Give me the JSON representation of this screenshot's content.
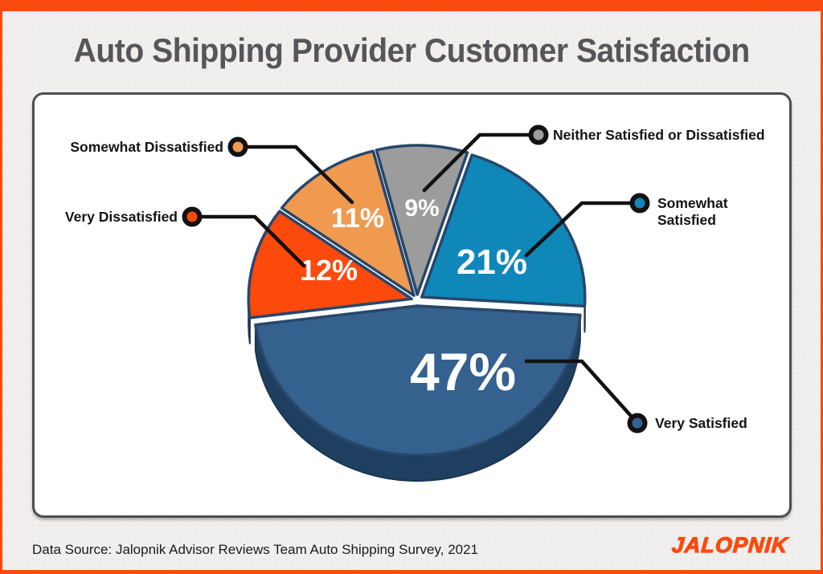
{
  "header": {
    "title": "Auto Shipping Provider Customer Satisfaction"
  },
  "footer": {
    "source": "Data Source: Jalopnik Advisor Reviews Team Auto Shipping Survey, 2021",
    "brand": "JALOPNIK"
  },
  "colors": {
    "accent": "#FA4A10",
    "background": "#F0EFED",
    "card_border": "#4E4E50",
    "title_text": "#56565A",
    "callout_line": "#121212",
    "slice_stroke": "#27476B",
    "percent_text": "#FFFFFF"
  },
  "chart_data": {
    "type": "pie",
    "title": "Auto Shipping Provider Customer Satisfaction",
    "style": "3d-exploded",
    "direction": "clockwise",
    "start_angle_deg": 104.5,
    "legend_position": "callouts",
    "total": 100,
    "slices": [
      {
        "label": "Neither Satisfied or Dissatisfied",
        "value": 9,
        "display": "9%",
        "color": "#9C9C9C",
        "side_color": "#6F6F6F"
      },
      {
        "label": "Somewhat Satisfied",
        "value": 21,
        "display": "21%",
        "color": "#0F87B9",
        "side_color": "#0A5E81"
      },
      {
        "label": "Very Satisfied",
        "value": 47,
        "display": "47%",
        "color": "#35618F",
        "side_color": "#1E3F5F"
      },
      {
        "label": "Very Dissatisfied",
        "value": 12,
        "display": "12%",
        "color": "#FB4A0C",
        "side_color": "#8B4A2B"
      },
      {
        "label": "Somewhat Dissatisfied",
        "value": 11,
        "display": "11%",
        "color": "#F09A50",
        "side_color": "#A96D35"
      }
    ]
  }
}
